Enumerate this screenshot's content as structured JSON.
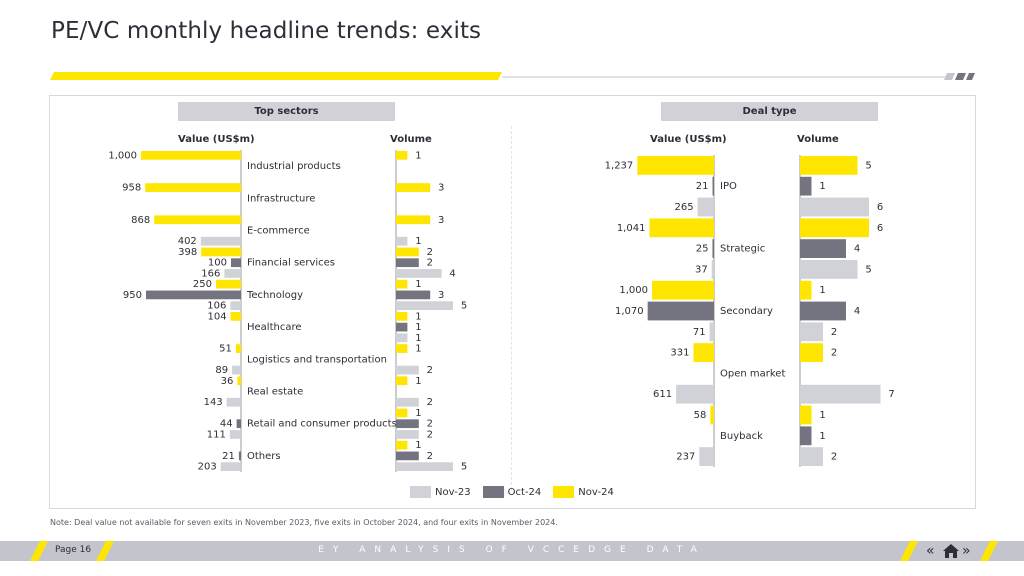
{
  "page_title": "PE/VC monthly headline trends: exits",
  "colors": {
    "nov23": "#d1d1d8",
    "oct24": "#747480",
    "nov24": "#ffe600",
    "axis": "#999999",
    "text": "#2e2e38"
  },
  "left_panel": {
    "header": "Top sectors",
    "value_header": "Value (US$m)",
    "volume_header": "Volume"
  },
  "right_panel": {
    "header": "Deal type",
    "value_header": "Value (US$m)",
    "volume_header": "Volume"
  },
  "legend": {
    "nov23": "Nov-23",
    "oct24": "Oct-24",
    "nov24": "Nov-24"
  },
  "note": "Note: Deal value not available for seven exits in November 2023, five exits in October 2024, and four exits in November 2024.",
  "footer": {
    "page": "Page 16",
    "center": "EY ANALYSIS OF VCCEDGE DATA"
  },
  "chart_data": [
    {
      "type": "bar",
      "title": "Top sectors",
      "series_order": [
        "Nov-24",
        "Oct-24",
        "Nov-23"
      ],
      "categories": [
        "Industrial products",
        "Infrastructure",
        "E-commerce",
        "Financial services",
        "Technology",
        "Healthcare",
        "Logistics and transportation",
        "Real estate",
        "Retail and consumer products",
        "Others"
      ],
      "value": {
        "label": "Value (US$m)",
        "series": [
          {
            "name": "Nov-24",
            "values": [
              1000,
              958,
              868,
              398,
              250,
              104,
              51,
              36,
              null,
              null
            ]
          },
          {
            "name": "Oct-24",
            "values": [
              null,
              null,
              null,
              100,
              950,
              null,
              null,
              null,
              44,
              21
            ]
          },
          {
            "name": "Nov-23",
            "values": [
              null,
              null,
              402,
              166,
              106,
              null,
              89,
              143,
              111,
              203
            ]
          }
        ]
      },
      "volume": {
        "label": "Volume",
        "series": [
          {
            "name": "Nov-24",
            "values": [
              1,
              3,
              3,
              2,
              1,
              1,
              1,
              1,
              1,
              1
            ]
          },
          {
            "name": "Oct-24",
            "values": [
              null,
              null,
              null,
              2,
              3,
              1,
              null,
              null,
              2,
              2
            ]
          },
          {
            "name": "Nov-23",
            "values": [
              null,
              null,
              1,
              4,
              5,
              1,
              2,
              2,
              2,
              5
            ]
          }
        ]
      }
    },
    {
      "type": "bar",
      "title": "Deal type",
      "series_order": [
        "Nov-24",
        "Oct-24",
        "Nov-23"
      ],
      "categories": [
        "IPO",
        "Strategic",
        "Secondary",
        "Open market",
        "Buyback"
      ],
      "value": {
        "label": "Value (US$m)",
        "series": [
          {
            "name": "Nov-24",
            "values": [
              1237,
              1041,
              1000,
              331,
              58
            ]
          },
          {
            "name": "Oct-24",
            "values": [
              21,
              25,
              1070,
              null,
              null
            ]
          },
          {
            "name": "Nov-23",
            "values": [
              265,
              37,
              71,
              611,
              237
            ]
          }
        ]
      },
      "volume": {
        "label": "Volume",
        "series": [
          {
            "name": "Nov-24",
            "values": [
              5,
              6,
              1,
              2,
              1
            ]
          },
          {
            "name": "Oct-24",
            "values": [
              1,
              4,
              4,
              null,
              1
            ]
          },
          {
            "name": "Nov-23",
            "values": [
              6,
              5,
              2,
              7,
              2
            ]
          }
        ]
      }
    }
  ]
}
